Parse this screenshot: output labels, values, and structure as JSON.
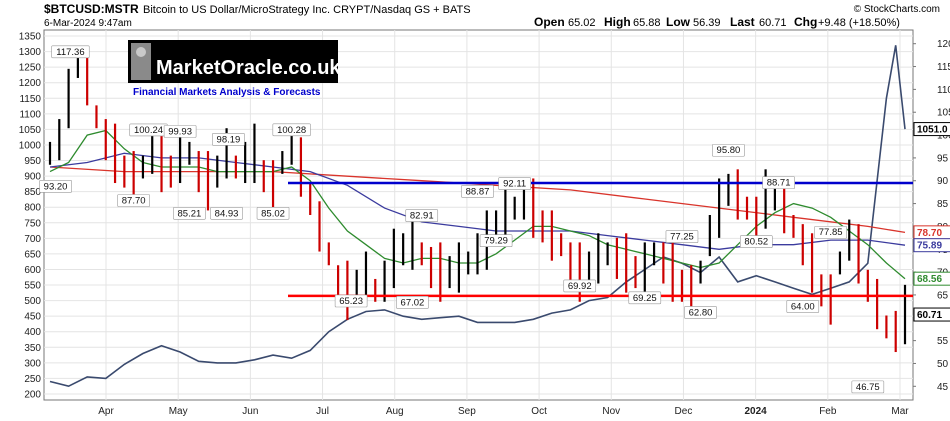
{
  "header": {
    "symbol": "$BTCUSD:MSTR",
    "description": "Bitcoin to US Dollar/MicroStrategy Inc.  CRYPT/Nasdaq GS + BATS",
    "timestamp": "6-Mar-2024 9:47am",
    "copyright": "© StockCharts.com",
    "open_label": "Open",
    "open": "65.02",
    "high_label": "High",
    "high": "65.88",
    "low_label": "Low",
    "low": "56.39",
    "last_label": "Last",
    "last": "60.71",
    "chg_label": "Chg",
    "chg": "+9.48 (+18.50%)"
  },
  "logo": {
    "text": "MarketOracle.co.uk",
    "tagline": "Financial Markets Analysis & Forecasts"
  },
  "colors": {
    "up_bar": "#000000",
    "down_bar": "#cc0000",
    "ma_short": "#2e8b2e",
    "ma_mid": "#3b3b9e",
    "ma_long": "#d9342b",
    "mstr_line": "#3a4a6e",
    "support_line": "#ff0000",
    "resistance_line": "#0000cc"
  },
  "chart_data": {
    "type": "line",
    "title": "$BTCUSD:MSTR",
    "left_axis": {
      "range": [
        200,
        1350
      ],
      "ticks": [
        200,
        250,
        300,
        350,
        400,
        450,
        500,
        550,
        600,
        650,
        700,
        750,
        800,
        850,
        900,
        950,
        1000,
        1050,
        1100,
        1150,
        1200,
        1250,
        1300,
        1350
      ]
    },
    "right_axis": {
      "range": [
        42,
        123
      ],
      "ticks": [
        45,
        50,
        55,
        60,
        65,
        70,
        75,
        80,
        85,
        90,
        95,
        100,
        105,
        110,
        115,
        120
      ]
    },
    "x_labels": [
      "Apr",
      "May",
      "Jun",
      "Jul",
      "Aug",
      "Sep",
      "Oct",
      "Nov",
      "Dec",
      "2024",
      "Feb",
      "Mar"
    ],
    "grid": true,
    "series": [
      {
        "name": "$BTCUSD:MSTR",
        "axis": "right",
        "style": "ohlc",
        "points": [
          [
            0,
            96
          ],
          [
            0.5,
            99
          ],
          [
            1,
            108
          ],
          [
            1.5,
            116
          ],
          [
            2,
            112
          ],
          [
            2.5,
            104
          ],
          [
            3,
            99
          ],
          [
            3.5,
            96
          ],
          [
            4,
            92
          ],
          [
            4.5,
            91
          ],
          [
            5,
            93
          ],
          [
            5.5,
            96
          ],
          [
            6,
            94
          ],
          [
            6.5,
            92
          ],
          [
            7,
            95
          ],
          [
            7.5,
            96
          ],
          [
            8,
            92
          ],
          [
            8.5,
            90
          ],
          [
            9,
            92
          ],
          [
            9.5,
            96
          ],
          [
            10,
            93
          ],
          [
            10.5,
            94
          ],
          [
            11,
            96
          ],
          [
            11.5,
            91
          ],
          [
            12,
            89
          ],
          [
            12.5,
            94
          ],
          [
            13,
            98
          ],
          [
            13.5,
            93
          ],
          [
            14,
            86
          ],
          [
            14.5,
            80
          ],
          [
            15,
            74
          ],
          [
            15.5,
            67
          ],
          [
            16,
            66
          ],
          [
            16.5,
            67
          ],
          [
            17,
            69
          ],
          [
            17.5,
            66
          ],
          [
            18,
            68
          ],
          [
            18.5,
            73
          ],
          [
            19,
            75
          ],
          [
            19.5,
            76
          ],
          [
            20,
            74
          ],
          [
            20.5,
            71
          ],
          [
            21,
            70
          ],
          [
            21.5,
            70
          ],
          [
            22,
            71
          ],
          [
            22.5,
            72
          ],
          [
            23,
            74
          ],
          [
            23.5,
            77
          ],
          [
            24,
            80
          ],
          [
            24.5,
            83
          ],
          [
            25,
            84
          ],
          [
            25.5,
            86
          ],
          [
            26,
            84
          ],
          [
            26.5,
            80
          ],
          [
            27,
            78
          ],
          [
            27.5,
            76
          ],
          [
            28,
            72
          ],
          [
            28.5,
            70
          ],
          [
            29,
            71
          ],
          [
            29.5,
            73
          ],
          [
            30,
            74
          ],
          [
            30.5,
            73
          ],
          [
            31,
            72
          ],
          [
            31.5,
            70
          ],
          [
            32,
            71
          ],
          [
            32.5,
            74
          ],
          [
            33,
            72
          ],
          [
            33.5,
            70
          ],
          [
            34,
            67
          ],
          [
            34.5,
            66
          ],
          [
            35,
            70
          ],
          [
            35.5,
            78
          ],
          [
            36,
            84
          ],
          [
            36.5,
            88
          ],
          [
            37,
            87
          ],
          [
            37.5,
            84
          ],
          [
            38,
            82
          ],
          [
            38.5,
            86
          ],
          [
            39,
            87
          ],
          [
            39.5,
            84
          ],
          [
            40,
            80
          ],
          [
            40.5,
            76
          ],
          [
            41,
            72
          ],
          [
            41.5,
            66
          ],
          [
            42,
            64
          ],
          [
            42.5,
            72
          ],
          [
            43,
            77
          ],
          [
            43.5,
            74
          ],
          [
            44,
            67
          ],
          [
            44.5,
            63
          ],
          [
            45,
            58
          ],
          [
            45.5,
            57
          ],
          [
            46,
            60.71
          ]
        ]
      },
      {
        "name": "MA short",
        "axis": "right",
        "style": "line",
        "points": [
          [
            0,
            92
          ],
          [
            1,
            94
          ],
          [
            2,
            100
          ],
          [
            3,
            101
          ],
          [
            4,
            97
          ],
          [
            5,
            94
          ],
          [
            6,
            93
          ],
          [
            7,
            93
          ],
          [
            8,
            93
          ],
          [
            9,
            92
          ],
          [
            10,
            92
          ],
          [
            11,
            92
          ],
          [
            12,
            92
          ],
          [
            13,
            93
          ],
          [
            14,
            90
          ],
          [
            15,
            84
          ],
          [
            16,
            79
          ],
          [
            17,
            76
          ],
          [
            18,
            73
          ],
          [
            19,
            72
          ],
          [
            20,
            73
          ],
          [
            21,
            73
          ],
          [
            22,
            72
          ],
          [
            23,
            72
          ],
          [
            24,
            74
          ],
          [
            25,
            77
          ],
          [
            26,
            80
          ],
          [
            27,
            80
          ],
          [
            28,
            79
          ],
          [
            29,
            78
          ],
          [
            30,
            76
          ],
          [
            31,
            75
          ],
          [
            32,
            74
          ],
          [
            33,
            73
          ],
          [
            34,
            72
          ],
          [
            35,
            71
          ],
          [
            36,
            72
          ],
          [
            37,
            76
          ],
          [
            38,
            80
          ],
          [
            39,
            83
          ],
          [
            40,
            85
          ],
          [
            41,
            84
          ],
          [
            42,
            82
          ],
          [
            43,
            79
          ],
          [
            44,
            76
          ],
          [
            45,
            72
          ],
          [
            46,
            68.56
          ]
        ]
      },
      {
        "name": "MA mid",
        "axis": "right",
        "style": "line",
        "points": [
          [
            0,
            93
          ],
          [
            2,
            94
          ],
          [
            4,
            96
          ],
          [
            6,
            95
          ],
          [
            8,
            95
          ],
          [
            10,
            94
          ],
          [
            12,
            93
          ],
          [
            14,
            92
          ],
          [
            16,
            89
          ],
          [
            18,
            84
          ],
          [
            20,
            81
          ],
          [
            22,
            80
          ],
          [
            24,
            79
          ],
          [
            26,
            79
          ],
          [
            28,
            79
          ],
          [
            30,
            78
          ],
          [
            32,
            77
          ],
          [
            34,
            76
          ],
          [
            36,
            75
          ],
          [
            38,
            76
          ],
          [
            40,
            76
          ],
          [
            42,
            77
          ],
          [
            44,
            77
          ],
          [
            46,
            75.89
          ]
        ]
      },
      {
        "name": "MA long",
        "axis": "right",
        "style": "line",
        "points": [
          [
            0,
            93
          ],
          [
            4,
            92
          ],
          [
            8,
            92
          ],
          [
            12,
            92
          ],
          [
            16,
            91
          ],
          [
            20,
            90
          ],
          [
            24,
            89
          ],
          [
            28,
            88
          ],
          [
            32,
            86
          ],
          [
            36,
            84
          ],
          [
            40,
            82
          ],
          [
            44,
            80
          ],
          [
            46,
            78.7
          ]
        ]
      },
      {
        "name": "MSTR",
        "axis": "left",
        "style": "line",
        "points": [
          [
            0,
            240
          ],
          [
            1,
            225
          ],
          [
            2,
            255
          ],
          [
            3,
            250
          ],
          [
            4,
            295
          ],
          [
            5,
            330
          ],
          [
            6,
            355
          ],
          [
            7,
            335
          ],
          [
            8,
            305
          ],
          [
            9,
            300
          ],
          [
            10,
            300
          ],
          [
            11,
            310
          ],
          [
            12,
            325
          ],
          [
            13,
            315
          ],
          [
            14,
            340
          ],
          [
            15,
            400
          ],
          [
            16,
            440
          ],
          [
            17,
            465
          ],
          [
            18,
            470
          ],
          [
            19,
            450
          ],
          [
            20,
            440
          ],
          [
            21,
            445
          ],
          [
            22,
            450
          ],
          [
            23,
            430
          ],
          [
            24,
            430
          ],
          [
            25,
            430
          ],
          [
            26,
            440
          ],
          [
            27,
            460
          ],
          [
            28,
            470
          ],
          [
            29,
            500
          ],
          [
            30,
            510
          ],
          [
            31,
            560
          ],
          [
            32,
            600
          ],
          [
            33,
            640
          ],
          [
            34,
            620
          ],
          [
            35,
            590
          ],
          [
            36,
            640
          ],
          [
            37,
            560
          ],
          [
            38,
            580
          ],
          [
            39,
            560
          ],
          [
            40,
            540
          ],
          [
            41,
            520
          ],
          [
            42,
            540
          ],
          [
            43,
            560
          ],
          [
            44,
            620
          ],
          [
            45,
            1150
          ],
          [
            45.5,
            1320
          ],
          [
            46,
            1051
          ]
        ]
      }
    ],
    "price_labels": [
      {
        "x": 1.1,
        "y": 117.36,
        "text": "117.36"
      },
      {
        "x": 5.3,
        "y": 100.24,
        "text": "100.24"
      },
      {
        "x": 7.0,
        "y": 99.93,
        "text": "99.93"
      },
      {
        "x": 9.6,
        "y": 98.19,
        "text": "98.19"
      },
      {
        "x": 13.0,
        "y": 100.28,
        "text": "100.28"
      },
      {
        "x": 0.3,
        "y": 87.9,
        "text": "93.20"
      },
      {
        "x": 4.5,
        "y": 84.8,
        "text": "87.70"
      },
      {
        "x": 7.5,
        "y": 82.0,
        "text": "85.21"
      },
      {
        "x": 9.5,
        "y": 82.0,
        "text": "84.93"
      },
      {
        "x": 12.0,
        "y": 82.0,
        "text": "85.02"
      },
      {
        "x": 20.0,
        "y": 81.5,
        "text": "82.91"
      },
      {
        "x": 23.0,
        "y": 86.8,
        "text": "88.87"
      },
      {
        "x": 25.0,
        "y": 88.5,
        "text": "92.11"
      },
      {
        "x": 24.0,
        "y": 76.0,
        "text": "79.29"
      },
      {
        "x": 34.0,
        "y": 76.9,
        "text": "77.25"
      },
      {
        "x": 36.5,
        "y": 95.8,
        "text": "95.80"
      },
      {
        "x": 39.2,
        "y": 88.71,
        "text": "88.71"
      },
      {
        "x": 42.0,
        "y": 77.85,
        "text": "77.85"
      },
      {
        "x": 38.0,
        "y": 75.8,
        "text": "80.52"
      },
      {
        "x": 16.2,
        "y": 62.8,
        "text": "65.23"
      },
      {
        "x": 19.5,
        "y": 62.5,
        "text": "67.02"
      },
      {
        "x": 28.5,
        "y": 66.1,
        "text": "69.92"
      },
      {
        "x": 32.0,
        "y": 63.5,
        "text": "69.25"
      },
      {
        "x": 35.0,
        "y": 60.3,
        "text": "62.80"
      },
      {
        "x": 40.5,
        "y": 61.6,
        "text": "64.00"
      },
      {
        "x": 44.0,
        "y": 44.0,
        "text": "46.75"
      }
    ],
    "right_tags": [
      {
        "value": 1051.0,
        "axis": "left",
        "text": "1051.0",
        "color": "#000000"
      },
      {
        "value": 78.7,
        "axis": "right",
        "text": "78.70",
        "color": "#d9342b"
      },
      {
        "value": 75.89,
        "axis": "right",
        "text": "75.89",
        "color": "#3b3b9e"
      },
      {
        "value": 68.56,
        "axis": "right",
        "text": "68.56",
        "color": "#2e8b2e"
      },
      {
        "value": 60.71,
        "axis": "right",
        "text": "60.71",
        "color": "#000000"
      }
    ],
    "horizontal_lines": [
      {
        "value": 89.5,
        "axis": "right",
        "color": "#0000cc",
        "name": "resistance"
      },
      {
        "value": 64.8,
        "axis": "right",
        "color": "#ff0000",
        "name": "support"
      }
    ]
  }
}
